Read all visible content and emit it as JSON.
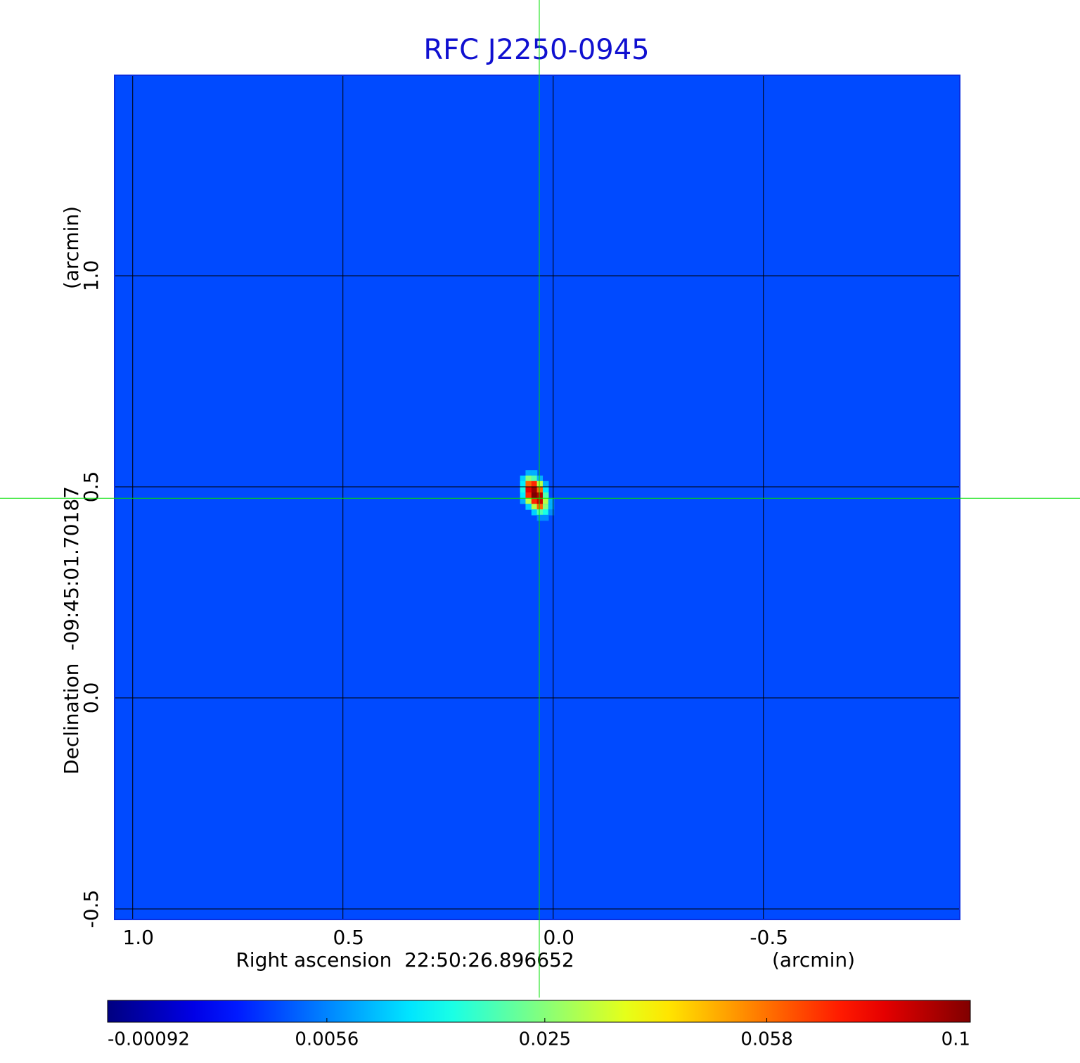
{
  "chart_data": {
    "type": "image",
    "title": "RFC J2250-0945",
    "xlabel": "Right ascension  22:50:26.896652",
    "xunit": "(arcmin)",
    "ylabel": "Declination  -09:45:01.70187",
    "yunit": "(arcmin)",
    "xlim": [
      1.043,
      -0.967
    ],
    "ylim": [
      -0.525,
      1.475
    ],
    "xticks": [
      {
        "value": 1,
        "label": "1.0"
      },
      0.5,
      {
        "value": 0,
        "label": "0.0"
      },
      -0.5
    ],
    "yticks": [
      -0.5,
      {
        "value": 0,
        "label": "0.0"
      },
      0.5,
      {
        "value": 1,
        "label": "1.0"
      }
    ],
    "grid": true,
    "colormap": "jet",
    "colorbar_scale": "sqrt",
    "clim": [
      -0.00092,
      0.1
    ],
    "colorbar_ticks": [
      -0.00092,
      0.0056,
      0.025,
      0.058,
      0.1
    ],
    "background": 0.003,
    "crosshair": {
      "x": 0.033,
      "y": 0.473,
      "color": "#00e000"
    },
    "pixels": {
      "x": [
        0.059,
        0.045,
        0.072,
        0.059,
        0.045,
        0.032,
        0.072,
        0.059,
        0.045,
        0.032,
        0.018,
        0.072,
        0.059,
        0.045,
        0.032,
        0.018,
        0.072,
        0.059,
        0.045,
        0.032,
        0.018,
        0.072,
        0.059,
        0.045,
        0.032,
        0.018,
        0.005,
        0.059,
        0.045,
        0.032,
        0.018,
        0.005,
        0.045,
        0.032,
        0.018,
        0.005,
        0.032,
        0.018
      ],
      "y": [
        0.533,
        0.533,
        0.52,
        0.52,
        0.52,
        0.52,
        0.507,
        0.507,
        0.507,
        0.507,
        0.507,
        0.493,
        0.493,
        0.493,
        0.493,
        0.493,
        0.48,
        0.48,
        0.48,
        0.48,
        0.48,
        0.467,
        0.467,
        0.467,
        0.467,
        0.467,
        0.467,
        0.453,
        0.453,
        0.453,
        0.453,
        0.453,
        0.44,
        0.44,
        0.44,
        0.44,
        0.427,
        0.427
      ],
      "values": [
        0.008,
        0.008,
        0.01,
        0.025,
        0.02,
        0.008,
        0.012,
        0.06,
        0.07,
        0.03,
        0.008,
        0.015,
        0.08,
        0.095,
        0.06,
        0.012,
        0.012,
        0.07,
        0.1,
        0.09,
        0.02,
        0.008,
        0.03,
        0.07,
        0.085,
        0.03,
        0.008,
        0.01,
        0.03,
        0.06,
        0.025,
        0.008,
        0.01,
        0.02,
        0.015,
        0.006,
        0.006,
        0.006
      ]
    }
  }
}
